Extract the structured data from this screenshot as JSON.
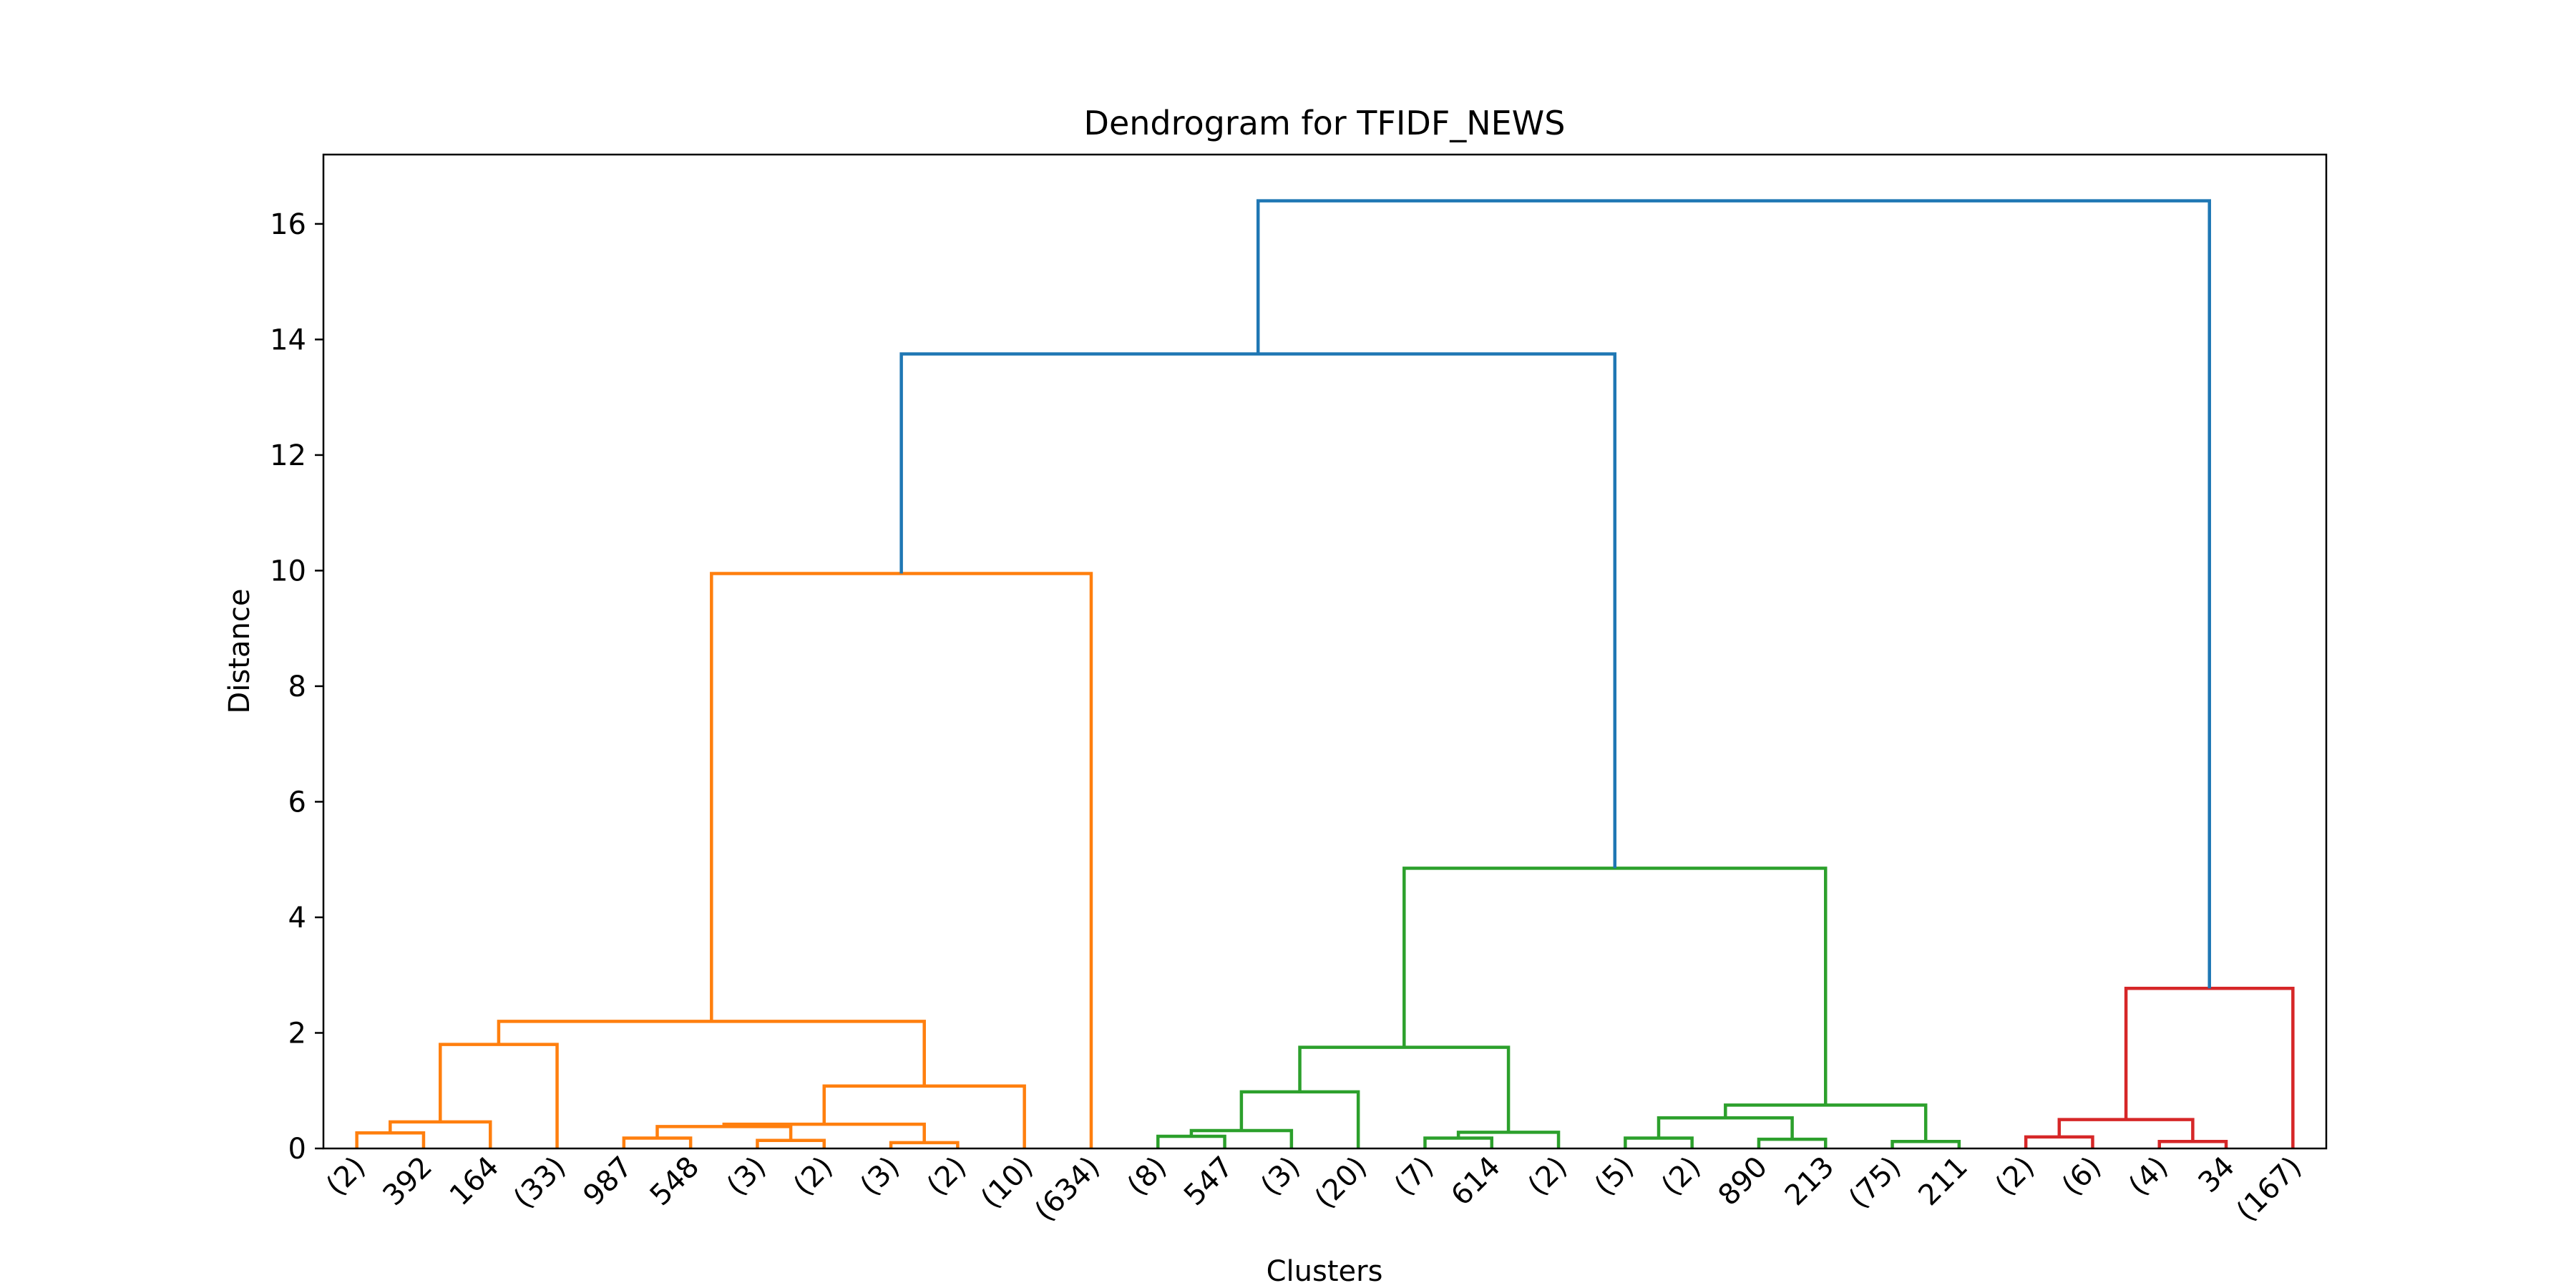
{
  "chart_data": {
    "type": "dendrogram",
    "title": "Dendrogram for TFIDF_NEWS",
    "xlabel": "Clusters",
    "ylabel": "Distance",
    "ylim": [
      0,
      17.2
    ],
    "yticks": [
      0,
      2,
      4,
      6,
      8,
      10,
      12,
      14,
      16
    ],
    "grid": false,
    "leaf_labels": [
      "(2)",
      "392",
      "164",
      "(33)",
      "987",
      "548",
      "(3)",
      "(2)",
      "(3)",
      "(2)",
      "(10)",
      "(634)",
      "(8)",
      "547",
      "(3)",
      "(20)",
      "(7)",
      "614",
      "(2)",
      "(5)",
      "(2)",
      "890",
      "213",
      "(75)",
      "211",
      "(2)",
      "(6)",
      "(4)",
      "34",
      "(167)"
    ],
    "colors": {
      "above_threshold": "#1f77b4",
      "cluster_1": "#ff7f0e",
      "cluster_2": "#2ca02c",
      "cluster_3": "#d62728"
    },
    "merges": [
      {
        "left": "L0",
        "right": "L1",
        "height": 0.27,
        "color": "cluster_1"
      },
      {
        "left": "N0",
        "right": "L2",
        "height": 0.46,
        "color": "cluster_1"
      },
      {
        "left": "N1",
        "right": "L3",
        "height": 1.8,
        "color": "cluster_1"
      },
      {
        "left": "L4",
        "right": "L5",
        "height": 0.18,
        "color": "cluster_1"
      },
      {
        "left": "L6",
        "right": "L7",
        "height": 0.14,
        "color": "cluster_1"
      },
      {
        "left": "N3",
        "right": "N4",
        "height": 0.38,
        "color": "cluster_1"
      },
      {
        "left": "L8",
        "right": "L9",
        "height": 0.1,
        "color": "cluster_1"
      },
      {
        "left": "N5",
        "right": "N6",
        "height": 0.42,
        "color": "cluster_1"
      },
      {
        "left": "N7",
        "right": "L10",
        "height": 1.08,
        "color": "cluster_1"
      },
      {
        "left": "N2",
        "right": "N8",
        "height": 2.2,
        "color": "cluster_1"
      },
      {
        "left": "N9",
        "right": "L11",
        "height": 9.95,
        "color": "cluster_1"
      },
      {
        "left": "L12",
        "right": "L13",
        "height": 0.21,
        "color": "cluster_2"
      },
      {
        "left": "N11",
        "right": "L14",
        "height": 0.31,
        "color": "cluster_2"
      },
      {
        "left": "N12",
        "right": "L15",
        "height": 0.98,
        "color": "cluster_2"
      },
      {
        "left": "L16",
        "right": "L17",
        "height": 0.18,
        "color": "cluster_2"
      },
      {
        "left": "N14",
        "right": "L18",
        "height": 0.28,
        "color": "cluster_2"
      },
      {
        "left": "N13",
        "right": "N15",
        "height": 1.75,
        "color": "cluster_2"
      },
      {
        "left": "L19",
        "right": "L20",
        "height": 0.18,
        "color": "cluster_2"
      },
      {
        "left": "L21",
        "right": "L22",
        "height": 0.16,
        "color": "cluster_2"
      },
      {
        "left": "N17",
        "right": "N18",
        "height": 0.53,
        "color": "cluster_2"
      },
      {
        "left": "L23",
        "right": "L24",
        "height": 0.12,
        "color": "cluster_2"
      },
      {
        "left": "N19",
        "right": "N20",
        "height": 0.75,
        "color": "cluster_2"
      },
      {
        "left": "N16",
        "right": "N21",
        "height": 4.85,
        "color": "cluster_2"
      },
      {
        "left": "N10",
        "right": "N22",
        "height": 13.75,
        "color": "above_threshold"
      },
      {
        "left": "L25",
        "right": "L26",
        "height": 0.2,
        "color": "cluster_3"
      },
      {
        "left": "L27",
        "right": "L28",
        "height": 0.12,
        "color": "cluster_3"
      },
      {
        "left": "N24",
        "right": "N25",
        "height": 0.5,
        "color": "cluster_3"
      },
      {
        "left": "N26",
        "right": "L29",
        "height": 2.77,
        "color": "cluster_3"
      },
      {
        "left": "N23",
        "right": "N27",
        "height": 16.4,
        "color": "above_threshold"
      }
    ]
  }
}
